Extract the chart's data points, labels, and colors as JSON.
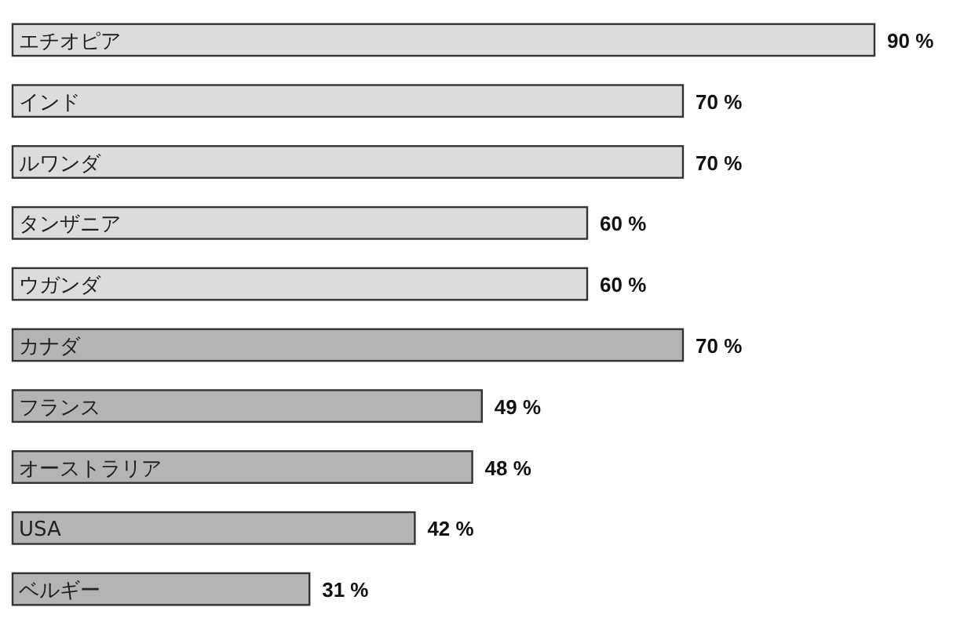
{
  "chart_data": {
    "type": "bar",
    "orientation": "horizontal",
    "categories": [
      "エチオピア",
      "インド",
      "ルワンダ",
      "タンザニア",
      "ウガンダ",
      "カナダ",
      "フランス",
      "オーストラリア",
      "USA",
      "ベルギー"
    ],
    "values": [
      90,
      70,
      70,
      60,
      60,
      70,
      49,
      48,
      42,
      31
    ],
    "colors": [
      "#dcdcdc",
      "#dcdcdc",
      "#dcdcdc",
      "#dcdcdc",
      "#dcdcdc",
      "#b4b4b4",
      "#b4b4b4",
      "#b4b4b4",
      "#b4b4b4",
      "#b4b4b4"
    ],
    "value_labels": [
      "90 %",
      "70 %",
      "70 %",
      "60 %",
      "60 %",
      "70 %",
      "49 %",
      "48 %",
      "42 %",
      "31 %"
    ],
    "xlim": [
      0,
      90
    ]
  }
}
